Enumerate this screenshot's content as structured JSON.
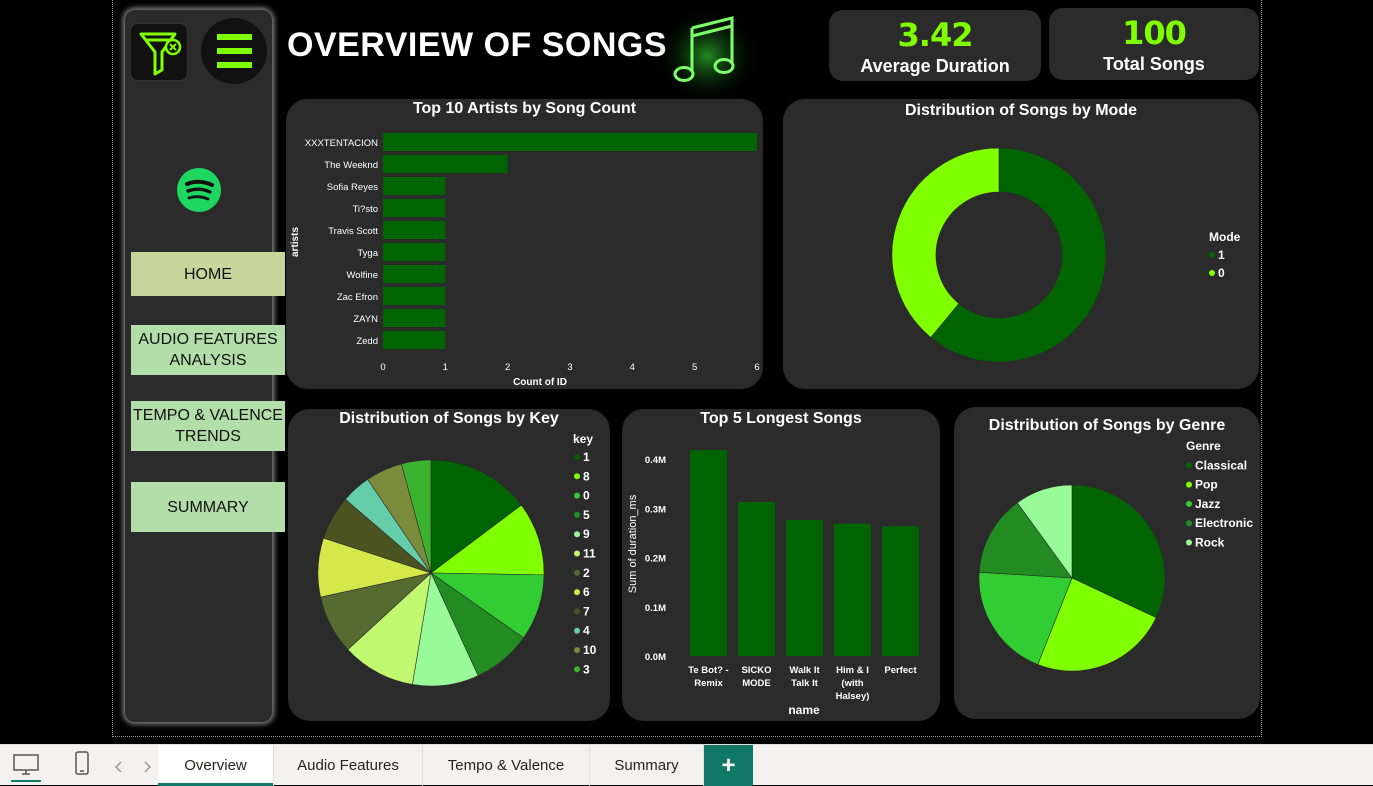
{
  "header": {
    "title": "OVERVIEW OF SONGS"
  },
  "kpis": [
    {
      "value": "3.42",
      "label": "Average Duration"
    },
    {
      "value": "100",
      "label": "Total Songs"
    }
  ],
  "nav": {
    "home": "HOME",
    "audio_line1": "AUDIO FEATURES",
    "audio_line2": "ANALYSIS",
    "tempo_line1": "TEMPO & VALENCE",
    "tempo_line2": "TRENDS",
    "summary": "SUMMARY"
  },
  "nav_colors": {
    "home": "#c9d59b",
    "others": "#b3deaa"
  },
  "icons": [
    "filter-clear-icon",
    "hamburger-menu-icon",
    "spotify-logo-icon",
    "music-note-icon",
    "desktop-view-icon",
    "mobile-view-icon",
    "prev-page-icon",
    "next-page-icon",
    "add-page-icon"
  ],
  "accent": "#7fff00",
  "tabs": [
    "Overview",
    "Audio Features",
    "Tempo & Valence",
    "Summary"
  ],
  "add_tab": "+",
  "chart_data": [
    {
      "type": "bar",
      "orientation": "horizontal",
      "title": "Top 10 Artists by Song Count",
      "xlabel": "Count of ID",
      "ylabel": "artists",
      "categories": [
        "XXXTENTACION",
        "The Weeknd",
        "Sofia Reyes",
        "Ti?sto",
        "Travis Scott",
        "Tyga",
        "Wolfine",
        "Zac Efron",
        "ZAYN",
        "Zedd"
      ],
      "values": [
        6,
        2,
        1,
        1,
        1,
        1,
        1,
        1,
        1,
        1
      ],
      "xticks": [
        "0",
        "1",
        "2",
        "3",
        "4",
        "5",
        "6"
      ],
      "xlim": [
        0,
        6
      ],
      "color": "#006400"
    },
    {
      "type": "pie",
      "variant": "donut",
      "title": "Distribution of Songs by Mode",
      "legend_title": "Mode",
      "legend_position": "right",
      "labels": [
        "1",
        "0"
      ],
      "values": [
        61,
        39
      ],
      "colors": [
        "#006400",
        "#7fff00"
      ]
    },
    {
      "type": "pie",
      "title": "Distribution of Songs by Key",
      "legend_title": "key",
      "legend_position": "top-right",
      "labels": [
        "1",
        "8",
        "0",
        "5",
        "9",
        "11",
        "2",
        "6",
        "7",
        "4",
        "10",
        "3"
      ],
      "values": [
        14,
        10,
        9,
        8,
        9,
        10,
        8,
        8,
        6,
        4,
        5,
        4
      ],
      "colors": [
        "#006400",
        "#7fff00",
        "#32cd32",
        "#228b22",
        "#98fb98",
        "#c2f870",
        "#556b2f",
        "#d4e84a",
        "#4b5320",
        "#66cdaa",
        "#7a8c3c",
        "#3cb32f"
      ]
    },
    {
      "type": "bar",
      "title": "Top 5 Longest Songs",
      "xlabel": "name",
      "ylabel": "Sum of duration_ms",
      "categories": [
        [
          "Te Bot? -",
          "Remix"
        ],
        [
          "SICKO",
          "MODE"
        ],
        [
          "Walk It",
          "Talk It"
        ],
        [
          "Him & I",
          "(with",
          "Halsey)"
        ],
        [
          "Perfect"
        ]
      ],
      "values": [
        417920,
        312820,
        276147,
        268867,
        263400
      ],
      "yticks": [
        "0.0M",
        "0.1M",
        "0.2M",
        "0.3M",
        "0.4M"
      ],
      "ylim": [
        0,
        400000
      ],
      "color": "#006400"
    },
    {
      "type": "pie",
      "title": "Distribution of Songs by Genre",
      "legend_title": "Genre",
      "legend_position": "top-right",
      "labels": [
        "Classical",
        "Pop",
        "Jazz",
        "Electronic",
        "Rock"
      ],
      "values": [
        32,
        24,
        20,
        14,
        10
      ],
      "colors": [
        "#006400",
        "#7fff00",
        "#32cd32",
        "#228b22",
        "#98fb98"
      ]
    }
  ]
}
